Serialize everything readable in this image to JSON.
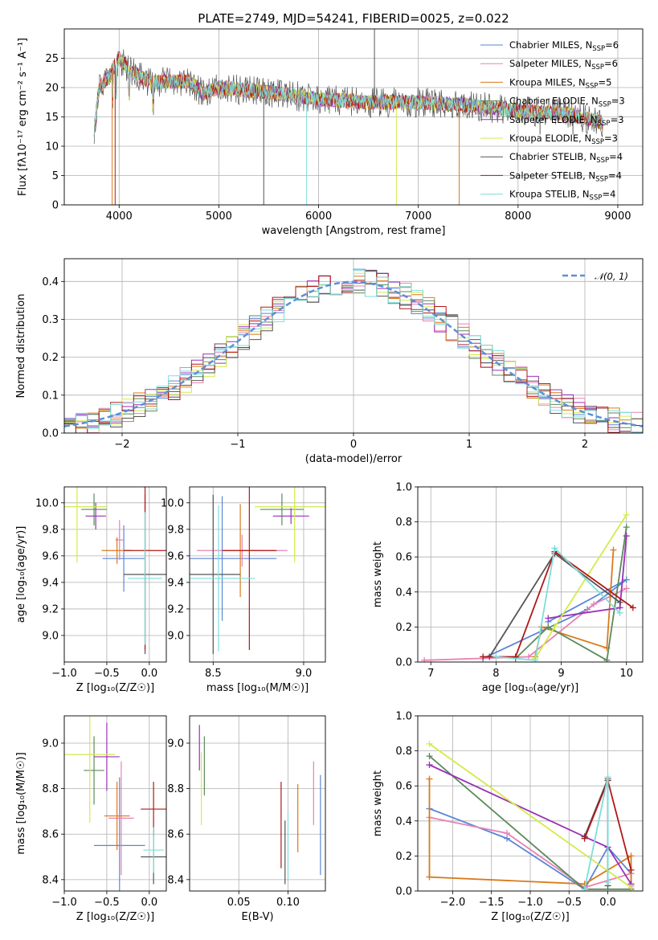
{
  "title": "PLATE=2749, MJD=54241, FIBERID=0025, z=0.022",
  "series": [
    {
      "name": "Chabrier MILES",
      "nssp": "6",
      "color": "#5b86d6"
    },
    {
      "name": "Salpeter MILES",
      "nssp": "6",
      "color": "#e882b4"
    },
    {
      "name": "Kroupa MILES",
      "nssp": "5",
      "color": "#d97a1c"
    },
    {
      "name": "Chabrier ELODIE",
      "nssp": "3",
      "color": "#5b8a5b"
    },
    {
      "name": "Salpeter ELODIE",
      "nssp": "3",
      "color": "#9b30b8"
    },
    {
      "name": "Kroupa ELODIE",
      "nssp": "3",
      "color": "#d4ea4a"
    },
    {
      "name": "Chabrier STELIB",
      "nssp": "4",
      "color": "#555555"
    },
    {
      "name": "Salpeter STELIB",
      "nssp": "4",
      "color": "#b01818"
    },
    {
      "name": "Kroupa STELIB",
      "nssp": "4",
      "color": "#7ddedc"
    }
  ],
  "chart_data": [
    {
      "id": "spectrum",
      "type": "line",
      "xlabel": "wavelength [Angstrom, rest frame]",
      "ylabel": "Flux [fλ10⁻¹⁷ erg cm⁻² s⁻¹ A⁻¹]",
      "xlim": [
        3450,
        9250
      ],
      "ylim": [
        0,
        30
      ],
      "xticks": [
        4000,
        5000,
        6000,
        7000,
        8000,
        9000
      ],
      "yticks": [
        0,
        5,
        10,
        15,
        20,
        25
      ],
      "legend": "top-right",
      "continuum": [
        [
          3750,
          13
        ],
        [
          3800,
          20
        ],
        [
          3900,
          22
        ],
        [
          4000,
          25
        ],
        [
          4100,
          23
        ],
        [
          4300,
          21
        ],
        [
          4500,
          21
        ],
        [
          4700,
          21
        ],
        [
          4850,
          19
        ],
        [
          5000,
          20
        ],
        [
          5300,
          19.5
        ],
        [
          5600,
          19
        ],
        [
          6000,
          18
        ],
        [
          6500,
          17.5
        ],
        [
          7000,
          17.5
        ],
        [
          7500,
          17
        ],
        [
          8000,
          16
        ],
        [
          8500,
          15.5
        ],
        [
          8850,
          14
        ]
      ]
    },
    {
      "id": "residuals",
      "type": "line",
      "xlabel": "(data-model)/error",
      "ylabel": "Normed distribution",
      "xlim": [
        -2.5,
        2.5
      ],
      "ylim": [
        0,
        0.46
      ],
      "xticks": [
        -2,
        -1,
        0,
        1,
        2
      ],
      "yticks": [
        0.0,
        0.1,
        0.2,
        0.3,
        0.4
      ],
      "legend": "top-right",
      "reference": {
        "name": "𝒩(0, 1)",
        "mean": 0,
        "sigma": 1,
        "color": "#5b8fd6"
      }
    },
    {
      "id": "age_vs_Z",
      "type": "scatter",
      "xlabel": "Z [log₁₀(Z/Z☉)]",
      "ylabel": "age  [log₁₀(age/yr)]",
      "xlim": [
        -1.0,
        0.2
      ],
      "ylim": [
        8.8,
        10.12
      ],
      "xticks": [
        -1.0,
        -0.5,
        0.0
      ],
      "yticks": [
        9.0,
        9.2,
        9.4,
        9.6,
        9.8,
        10.0
      ],
      "points": [
        {
          "s": 0,
          "x": -0.3,
          "y": 9.58,
          "ex": 0.25,
          "ey": 0.25
        },
        {
          "s": 1,
          "x": -0.35,
          "y": 9.72,
          "ex": 0.05,
          "ey": 0.15
        },
        {
          "s": 2,
          "x": -0.38,
          "y": 9.64,
          "ex": 0.18,
          "ey": 0.1
        },
        {
          "s": 3,
          "x": -0.65,
          "y": 9.95,
          "ex": 0.15,
          "ey": 0.12
        },
        {
          "s": 4,
          "x": -0.63,
          "y": 9.9,
          "ex": 0.12,
          "ey": 0.1
        },
        {
          "s": 5,
          "x": -0.85,
          "y": 9.97,
          "ex": 0.35,
          "ey": 0.42
        },
        {
          "s": 6,
          "x": -0.05,
          "y": 9.46,
          "ex": 0.25,
          "ey": 0.6
        },
        {
          "s": 7,
          "x": -0.05,
          "y": 9.64,
          "ex": 0.25,
          "ey": 0.75
        },
        {
          "s": 8,
          "x": -0.05,
          "y": 9.43,
          "ex": 0.2,
          "ey": 0.5
        }
      ]
    },
    {
      "id": "age_vs_mass",
      "type": "scatter",
      "xlabel": "mass [log₁₀(M/M☉)]",
      "ylabel": "",
      "xlim": [
        8.37,
        9.12
      ],
      "ylim": [
        8.8,
        10.12
      ],
      "xticks": [
        8.5,
        9.0
      ],
      "yticks": [
        9.0,
        9.2,
        9.4,
        9.6,
        9.8,
        10.0
      ],
      "points": [
        {
          "s": 0,
          "x": 8.55,
          "y": 9.58,
          "ex": 0.3,
          "ey": 0.47
        },
        {
          "s": 1,
          "x": 8.66,
          "y": 9.64,
          "ex": 0.25,
          "ey": 0.12
        },
        {
          "s": 2,
          "x": 8.65,
          "y": 9.64,
          "ex": 0.1,
          "ey": 0.35
        },
        {
          "s": 3,
          "x": 8.88,
          "y": 9.95,
          "ex": 0.12,
          "ey": 0.12
        },
        {
          "s": 4,
          "x": 8.93,
          "y": 9.9,
          "ex": 0.1,
          "ey": 0.06
        },
        {
          "s": 5,
          "x": 8.95,
          "y": 9.97,
          "ex": 0.22,
          "ey": 0.42
        },
        {
          "s": 6,
          "x": 8.5,
          "y": 9.46,
          "ex": 0.15,
          "ey": 0.6
        },
        {
          "s": 7,
          "x": 8.7,
          "y": 9.64,
          "ex": 0.15,
          "ey": 0.75
        },
        {
          "s": 8,
          "x": 8.53,
          "y": 9.43,
          "ex": 0.2,
          "ey": 0.55
        }
      ]
    },
    {
      "id": "weight_vs_age",
      "type": "line",
      "xlabel": "age  [log₁₀(age/yr)]",
      "ylabel": "mass weight",
      "xlim": [
        6.8,
        10.25
      ],
      "ylim": [
        0,
        1.0
      ],
      "xticks": [
        7,
        8,
        9,
        10
      ],
      "yticks": [
        0.0,
        0.2,
        0.4,
        0.6,
        0.8,
        1.0
      ],
      "lines": [
        {
          "s": 0,
          "pts": [
            [
              7.8,
              0.02
            ],
            [
              9.4,
              0.3
            ],
            [
              10.0,
              0.47
            ],
            [
              8.8,
              0.23
            ]
          ]
        },
        {
          "s": 1,
          "pts": [
            [
              6.9,
              0.01
            ],
            [
              8.5,
              0.03
            ],
            [
              9.5,
              0.33
            ],
            [
              10.0,
              0.42
            ]
          ]
        },
        {
          "s": 2,
          "pts": [
            [
              8.6,
              0.03
            ],
            [
              8.7,
              0.2
            ],
            [
              9.7,
              0.08
            ],
            [
              9.8,
              0.64
            ]
          ]
        },
        {
          "s": 3,
          "pts": [
            [
              8.3,
              0.02
            ],
            [
              8.8,
              0.2
            ],
            [
              9.7,
              0.01
            ],
            [
              10.0,
              0.77
            ]
          ]
        },
        {
          "s": 4,
          "pts": [
            [
              8.8,
              0.25
            ],
            [
              9.9,
              0.31
            ],
            [
              10.0,
              0.72
            ]
          ]
        },
        {
          "s": 5,
          "pts": [
            [
              8.6,
              0.02
            ],
            [
              8.9,
              0.2
            ],
            [
              10.0,
              0.84
            ]
          ]
        },
        {
          "s": 6,
          "pts": [
            [
              7.9,
              0.03
            ],
            [
              8.9,
              0.62
            ],
            [
              9.9,
              0.34
            ]
          ]
        },
        {
          "s": 7,
          "pts": [
            [
              7.8,
              0.03
            ],
            [
              8.3,
              0.03
            ],
            [
              8.9,
              0.63
            ],
            [
              10.1,
              0.31
            ]
          ]
        },
        {
          "s": 8,
          "pts": [
            [
              8.0,
              0.03
            ],
            [
              8.6,
              0.01
            ],
            [
              8.9,
              0.65
            ],
            [
              9.9,
              0.28
            ]
          ]
        }
      ]
    },
    {
      "id": "mass_vs_Z",
      "type": "scatter",
      "xlabel": "Z [log₁₀(Z/Z☉)]",
      "ylabel": "mass [log₁₀(M/M☉)]",
      "xlim": [
        -1.0,
        0.2
      ],
      "ylim": [
        8.35,
        9.12
      ],
      "xticks": [
        -1.0,
        -0.5,
        0.0
      ],
      "yticks": [
        8.4,
        8.6,
        8.8,
        9.0
      ],
      "points": [
        {
          "s": 0,
          "x": -0.35,
          "y": 8.55,
          "ex": 0.3,
          "ey": 0.3
        },
        {
          "s": 1,
          "x": -0.33,
          "y": 8.67,
          "ex": 0.15,
          "ey": 0.25
        },
        {
          "s": 2,
          "x": -0.38,
          "y": 8.68,
          "ex": 0.15,
          "ey": 0.15
        },
        {
          "s": 3,
          "x": -0.65,
          "y": 8.88,
          "ex": 0.12,
          "ey": 0.15
        },
        {
          "s": 4,
          "x": -0.5,
          "y": 8.94,
          "ex": 0.15,
          "ey": 0.15
        },
        {
          "s": 5,
          "x": -0.7,
          "y": 8.95,
          "ex": 0.3,
          "ey": 0.3
        },
        {
          "s": 6,
          "x": 0.05,
          "y": 8.5,
          "ex": 0.15,
          "ey": 0.12
        },
        {
          "s": 7,
          "x": 0.05,
          "y": 8.71,
          "ex": 0.15,
          "ey": 0.12
        },
        {
          "s": 8,
          "x": 0.05,
          "y": 8.53,
          "ex": 0.12,
          "ey": 0.1
        }
      ]
    },
    {
      "id": "mass_vs_EBV",
      "type": "scatter",
      "xlabel": "E(B-V)",
      "ylabel": "",
      "xlim": [
        0.0,
        0.138
      ],
      "ylim": [
        8.35,
        9.12
      ],
      "xticks": [
        0.05,
        0.1
      ],
      "yticks": [
        8.4,
        8.6,
        8.8,
        9.0
      ],
      "points": [
        {
          "s": 0,
          "x": 0.133,
          "y": 8.64,
          "ex": 0.0,
          "ey": 0.22
        },
        {
          "s": 1,
          "x": 0.126,
          "y": 8.78,
          "ex": 0.0,
          "ey": 0.14
        },
        {
          "s": 2,
          "x": 0.11,
          "y": 8.67,
          "ex": 0.0,
          "ey": 0.15
        },
        {
          "s": 3,
          "x": 0.015,
          "y": 8.9,
          "ex": 0.0,
          "ey": 0.13
        },
        {
          "s": 4,
          "x": 0.01,
          "y": 8.98,
          "ex": 0.0,
          "ey": 0.1
        },
        {
          "s": 5,
          "x": 0.012,
          "y": 8.8,
          "ex": 0.0,
          "ey": 0.16
        },
        {
          "s": 6,
          "x": 0.097,
          "y": 8.52,
          "ex": 0.0,
          "ey": 0.14
        },
        {
          "s": 7,
          "x": 0.093,
          "y": 8.64,
          "ex": 0.0,
          "ey": 0.19
        },
        {
          "s": 8,
          "x": 0.1,
          "y": 8.55,
          "ex": 0.0,
          "ey": 0.15
        }
      ]
    },
    {
      "id": "weight_vs_Z",
      "type": "line",
      "xlabel": "Z [log₁₀(Z/Z☉)]",
      "ylabel": "mass weight",
      "xlim": [
        -2.45,
        0.45
      ],
      "ylim": [
        0,
        1.0
      ],
      "xticks": [
        -2.0,
        -1.5,
        -1.0,
        -0.5,
        0.0
      ],
      "yticks": [
        0.0,
        0.2,
        0.4,
        0.6,
        0.8,
        1.0
      ],
      "lines": [
        {
          "s": 0,
          "pts": [
            [
              -2.3,
              0.47
            ],
            [
              -1.3,
              0.3
            ],
            [
              -0.3,
              0.01
            ],
            [
              0.0,
              0.25
            ],
            [
              0.3,
              0.1
            ]
          ]
        },
        {
          "s": 1,
          "pts": [
            [
              -2.3,
              0.42
            ],
            [
              -1.3,
              0.33
            ],
            [
              -0.3,
              0.02
            ],
            [
              0.3,
              0.1
            ],
            [
              0.3,
              0.03
            ]
          ]
        },
        {
          "s": 2,
          "pts": [
            [
              -2.3,
              0.64
            ],
            [
              -2.3,
              0.08
            ],
            [
              -0.3,
              0.04
            ],
            [
              0.3,
              0.2
            ],
            [
              0.3,
              0.01
            ]
          ]
        },
        {
          "s": 3,
          "pts": [
            [
              -2.3,
              0.77
            ],
            [
              -0.3,
              0.01
            ],
            [
              0.3,
              0.01
            ]
          ]
        },
        {
          "s": 4,
          "pts": [
            [
              -2.3,
              0.72
            ],
            [
              -0.3,
              0.31
            ],
            [
              0.0,
              0.25
            ],
            [
              0.3,
              0.04
            ]
          ]
        },
        {
          "s": 5,
          "pts": [
            [
              -2.3,
              0.84
            ],
            [
              0.3,
              0.02
            ]
          ]
        },
        {
          "s": 6,
          "pts": [
            [
              -0.3,
              0.31
            ],
            [
              0.0,
              0.64
            ],
            [
              0.0,
              0.03
            ]
          ]
        },
        {
          "s": 7,
          "pts": [
            [
              -0.3,
              0.3
            ],
            [
              0.0,
              0.63
            ],
            [
              0.3,
              0.12
            ]
          ]
        },
        {
          "s": 8,
          "pts": [
            [
              -0.3,
              0.01
            ],
            [
              0.0,
              0.65
            ],
            [
              0.0,
              0.05
            ]
          ]
        }
      ]
    }
  ]
}
